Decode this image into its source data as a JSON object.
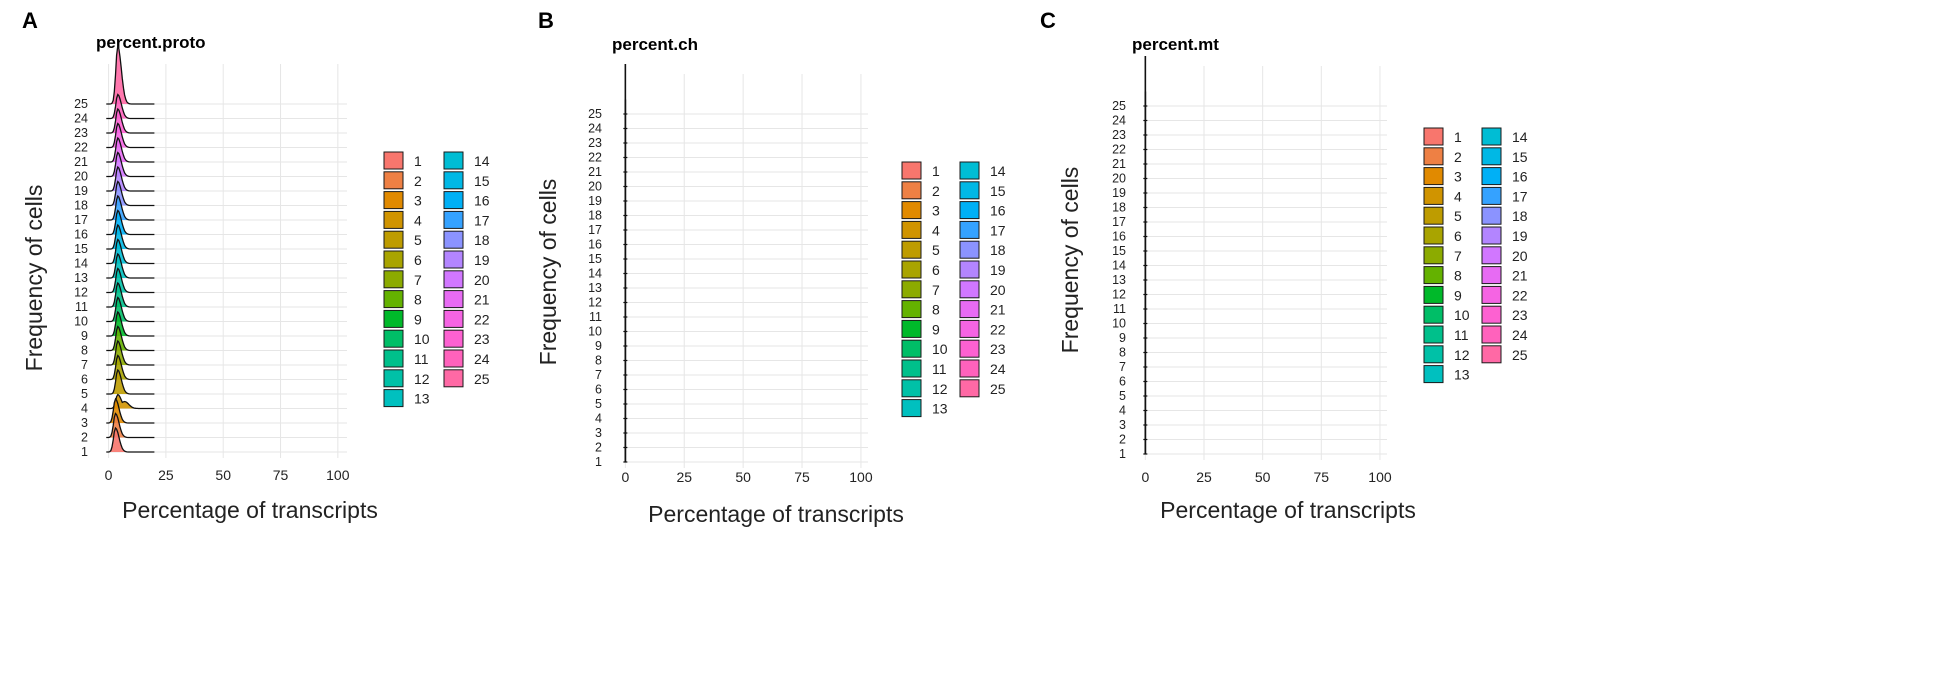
{
  "figure": {
    "panels": [
      {
        "letter": "A",
        "title": "percent.proto",
        "xlabel": "Percentage of  transcripts",
        "ylabel": "Frequency of cells"
      },
      {
        "letter": "B",
        "title": "percent.ch",
        "xlabel": "Percentage of  transcripts",
        "ylabel": "Frequency of cells"
      },
      {
        "letter": "C",
        "title": "percent.mt",
        "xlabel": "Percentage of  transcripts",
        "ylabel": "Frequency of cells"
      }
    ]
  },
  "chart_data": [
    {
      "type": "area",
      "subtype": "ridgeline",
      "title": "percent.proto",
      "xlabel": "Percentage of  transcripts",
      "ylabel": "Frequency of cells",
      "x_ticks": [
        0,
        25,
        50,
        75,
        100
      ],
      "xlim": [
        -2,
        104
      ],
      "categories": [
        "1",
        "2",
        "3",
        "4",
        "5",
        "6",
        "7",
        "8",
        "9",
        "10",
        "11",
        "12",
        "13",
        "14",
        "15",
        "16",
        "17",
        "18",
        "19",
        "20",
        "21",
        "22",
        "23",
        "24",
        "25"
      ],
      "distribution": {
        "mode": [
          3,
          3,
          3,
          4,
          4,
          4,
          4,
          4,
          4,
          4,
          4,
          4,
          4,
          4,
          4,
          4,
          4,
          4,
          4,
          4,
          4,
          4,
          4,
          4,
          4
        ],
        "range_max": 20
      },
      "legend_position": "right",
      "grid": true
    },
    {
      "type": "area",
      "subtype": "ridgeline",
      "title": "percent.ch",
      "xlabel": "Percentage of  transcripts",
      "ylabel": "Frequency of cells",
      "x_ticks": [
        0,
        25,
        50,
        75,
        100
      ],
      "xlim": [
        -1,
        103
      ],
      "categories": [
        "1",
        "2",
        "3",
        "4",
        "5",
        "6",
        "7",
        "8",
        "9",
        "10",
        "11",
        "12",
        "13",
        "14",
        "15",
        "16",
        "17",
        "18",
        "19",
        "20",
        "21",
        "22",
        "23",
        "24",
        "25"
      ],
      "distribution": {
        "mode": 0,
        "range_max": 0
      },
      "legend_position": "right",
      "grid": true
    },
    {
      "type": "area",
      "subtype": "ridgeline",
      "title": "percent.mt",
      "xlabel": "Percentage of  transcripts",
      "ylabel": "Frequency of cells",
      "x_ticks": [
        0,
        25,
        50,
        75,
        100
      ],
      "xlim": [
        -1,
        103
      ],
      "categories": [
        "1",
        "2",
        "3",
        "4",
        "5",
        "6",
        "7",
        "8",
        "9",
        "10",
        "11",
        "12",
        "13",
        "14",
        "15",
        "16",
        "17",
        "18",
        "19",
        "20",
        "21",
        "22",
        "23",
        "24",
        "25"
      ],
      "distribution": {
        "mode": 0,
        "range_max": 0
      },
      "legend_position": "right",
      "grid": true
    }
  ],
  "legend": {
    "labels": [
      "1",
      "2",
      "3",
      "4",
      "5",
      "6",
      "7",
      "8",
      "9",
      "10",
      "11",
      "12",
      "13",
      "14",
      "15",
      "16",
      "17",
      "18",
      "19",
      "20",
      "21",
      "22",
      "23",
      "24",
      "25"
    ],
    "colors": [
      "#F8766D",
      "#EE8044",
      "#E18A00",
      "#D09400",
      "#BE9C00",
      "#A9A400",
      "#8CAB00",
      "#64B200",
      "#00B92A",
      "#00BE67",
      "#00C08B",
      "#00C1A7",
      "#00C0BF",
      "#00BDD4",
      "#00B8E5",
      "#00B0F6",
      "#35A2FF",
      "#8B93FF",
      "#B385FF",
      "#D177FF",
      "#E76BF3",
      "#F564E3",
      "#FD61D1",
      "#FF62BC",
      "#FF69A5"
    ]
  }
}
